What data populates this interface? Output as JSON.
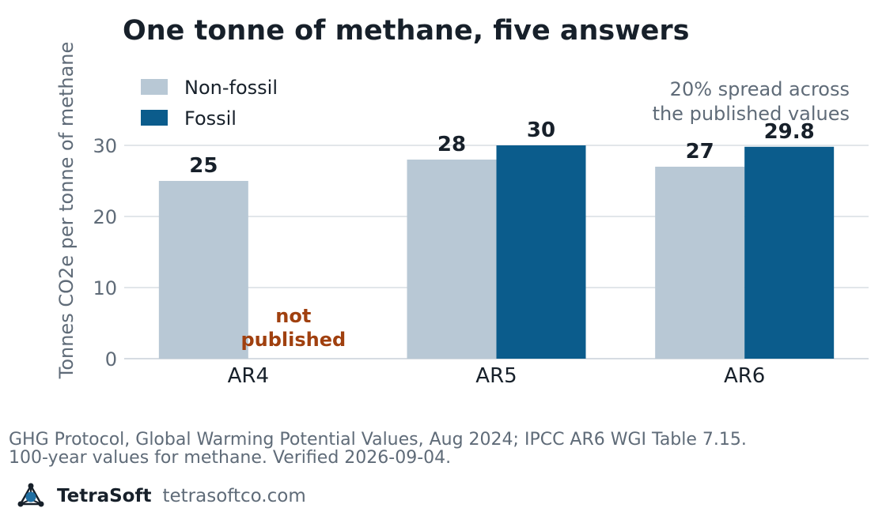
{
  "brand": {
    "name": "TetraSoft",
    "site": "tetrasoftco.com",
    "logo_icon": "tetrahedron-logo-icon"
  },
  "source_note": "GHG Protocol, Global Warming Potential Values, Aug 2024; IPCC AR6 WGI Table 7.15.\n100-year values for methane. Verified 2026-09-04.",
  "chart_data": {
    "type": "bar",
    "title": "One tonne of methane, five answers",
    "xlabel": "",
    "ylabel": "Tonnes CO2e per tonne of methane",
    "categories": [
      "AR4",
      "AR5",
      "AR6"
    ],
    "series": [
      {
        "name": "Non-fossil",
        "color": "#b8c8d5",
        "values": [
          25,
          28,
          27
        ],
        "labels": [
          "25",
          "28",
          "27"
        ]
      },
      {
        "name": "Fossil",
        "color": "#0b5c8c",
        "values": [
          null,
          30,
          29.8
        ],
        "labels": [
          "",
          "30",
          "29.8"
        ]
      }
    ],
    "ylim": [
      0,
      30
    ],
    "yticks": [
      0,
      10,
      20,
      30
    ],
    "grid": true,
    "legend": "top-left",
    "annotations": [
      {
        "text": "20% spread across\nthe published values",
        "position": "top-right"
      },
      {
        "text": "not\npublished",
        "category": "AR4",
        "series": "Fossil",
        "color": "#a0400f"
      }
    ]
  }
}
